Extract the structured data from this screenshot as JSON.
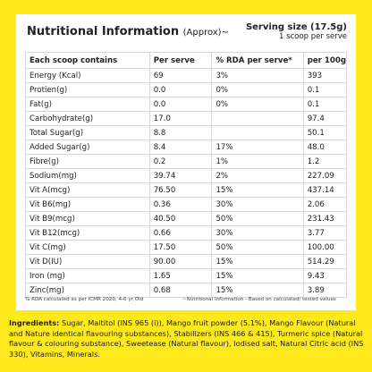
{
  "header": {
    "title": "Nutritional Information",
    "title_note": "(Approx)~",
    "serving_size": "Serving size (17.5g)",
    "serving_note": "1 scoop per serve"
  },
  "table": {
    "columns": [
      "Each scoop contains",
      "Per serve",
      "% RDA per serve*",
      "per 100g"
    ],
    "rows": [
      [
        "Energy (Kcal)",
        "69",
        "3%",
        "393"
      ],
      [
        "Protien(g)",
        "0.0",
        "0%",
        "0.1"
      ],
      [
        "Fat(g)",
        "0.0",
        "0%",
        "0.1"
      ],
      [
        "Carbohydrate(g)",
        "17.0",
        null,
        "97.4"
      ],
      [
        "Total Sugar(g)",
        "8.8",
        null,
        "50.1"
      ],
      [
        "Added Sugar(g)",
        "8.4",
        "17%",
        "48.0"
      ],
      [
        "Fibre(g)",
        "0.2",
        "1%",
        "1.2"
      ],
      [
        "Sodium(mg)",
        "39.74",
        "2%",
        "227.09"
      ],
      [
        "Vit A(mcg)",
        "76.50",
        "15%",
        "437.14"
      ],
      [
        "Vit B6(mg)",
        "0.36",
        "30%",
        "2.06"
      ],
      [
        "Vit B9(mcg)",
        "40.50",
        "50%",
        "231.43"
      ],
      [
        "Vit B12(mcg)",
        "0.66",
        "30%",
        "3.77"
      ],
      [
        "Vit C(mg)",
        "17.50",
        "50%",
        "100.00"
      ],
      [
        "Vit D(IU)",
        "90.00",
        "15%",
        "514.29"
      ],
      [
        "Iron (mg)",
        "1.65",
        "15%",
        "9.43"
      ],
      [
        "Zinc(mg)",
        "0.68",
        "15%",
        "3.89"
      ]
    ]
  },
  "footnotes": [
    "% RDA calculated as per ICMR 2020, 4-6 yr Old",
    "~Nutritional Information - Based on calculated/ tested values"
  ],
  "ingredients": {
    "label": "Ingredients:",
    "text": "Sugar, Maltitol (INS 965 (i)), Mango fruit powder (5.1%), Mango Flavour (Natural and Nature identical flavouring substances), Stabilizers (INS 466 & 415), Turmeric spice (Natural flavour & colouring substance), Sweetease (Natural flavour), Iodised salt, Natural Citric acid (INS 330), Vitamins, Minerals."
  }
}
